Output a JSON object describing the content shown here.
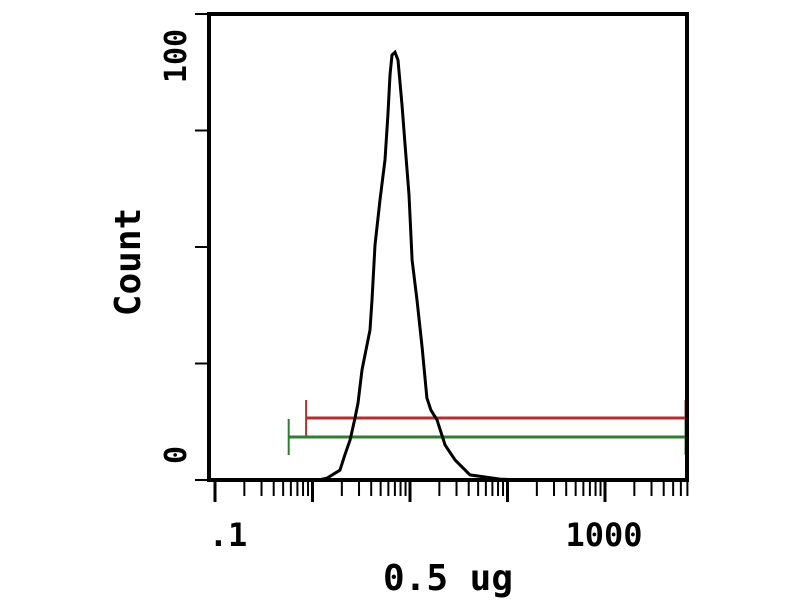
{
  "chart_data": {
    "type": "line",
    "title": "",
    "xlabel": "0.5 ug",
    "ylabel": "Count",
    "x_scale": "log",
    "xlim": [
      0.1,
      7100
    ],
    "ylim": [
      0,
      100
    ],
    "x_tick_labels": [
      {
        "value": 0.1,
        "label": ".1"
      },
      {
        "value": 1000,
        "label": "1000"
      }
    ],
    "x_major_ticks": [
      0.1,
      1,
      10,
      100,
      1000
    ],
    "y_ticks": [
      0,
      25,
      50,
      75,
      100
    ],
    "y_tick_labels": [
      {
        "value": 0,
        "label": "0"
      },
      {
        "value": 100,
        "label": "100"
      }
    ],
    "grid": false,
    "series": [
      {
        "color": "#000000",
        "x": [
          1.41,
          1.91,
          2.15,
          2.43,
          2.73,
          2.93,
          3.22,
          3.89,
          4.08,
          4.38,
          4.92,
          5.54,
          5.94,
          6.24,
          6.54,
          7.02,
          7.53,
          8.28,
          8.89,
          9.77,
          10.5,
          11.8,
          13.3,
          14.9,
          16.4,
          18.9,
          22.9,
          29.0,
          41.2,
          83.8
        ],
        "y": [
          0.4,
          2.1,
          5.4,
          8.6,
          13.3,
          16.5,
          23.6,
          32.2,
          38.6,
          50.4,
          60.1,
          68.7,
          78.3,
          86.9,
          91.2,
          91.8,
          90.1,
          80.5,
          72.1,
          61.2,
          47.2,
          38.6,
          28.5,
          17.6,
          15.0,
          12.9,
          7.5,
          4.3,
          1.1,
          0.2
        ]
      }
    ],
    "markers": [
      {
        "color": "#b03030",
        "x_start": 0.86,
        "x_end": 7100
      },
      {
        "color": "#2e7d32",
        "x_start": 0.57,
        "x_end": 7100
      }
    ]
  }
}
